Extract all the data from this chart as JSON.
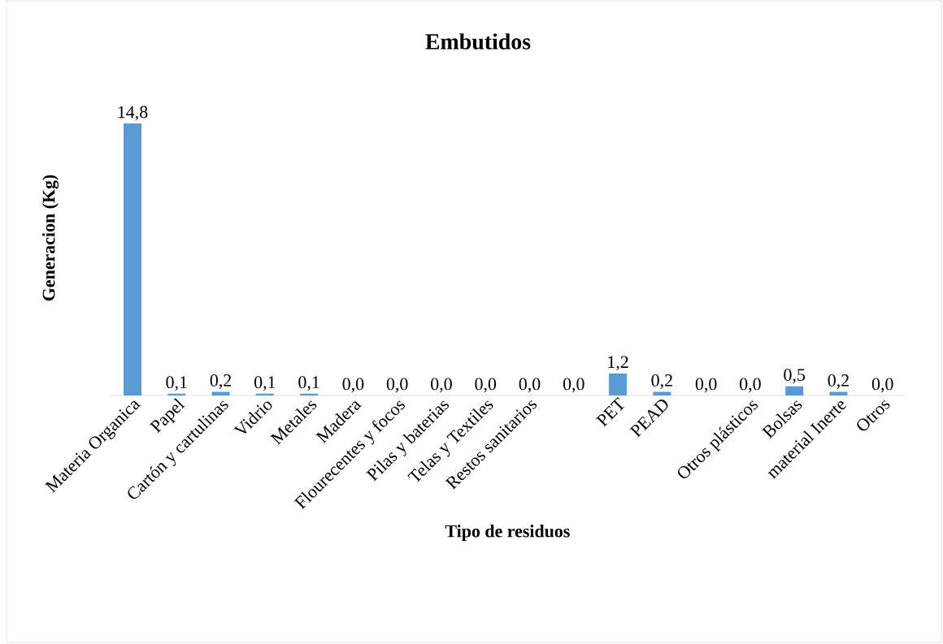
{
  "chart_data": {
    "type": "bar",
    "title": "Embutidos",
    "xlabel": "Tipo de residuos",
    "ylabel": "Generacion (Kg)",
    "categories": [
      "Materia Organica",
      "Papel",
      "Cartón y cartulinas",
      "Vidrio",
      "Metales",
      "Madera",
      "Flourecentes y focos",
      "Pilas y baterias",
      "Telas y Textiles",
      "Restos sanitarios",
      null,
      "PET",
      "PEAD",
      null,
      "Otros plásticos",
      "Bolsas",
      "material Inerte",
      "Otros"
    ],
    "values": [
      14.8,
      0.1,
      0.2,
      0.1,
      0.1,
      0.0,
      0.0,
      0.0,
      0.0,
      0.0,
      0.0,
      1.2,
      0.2,
      0.0,
      0.0,
      0.5,
      0.2,
      0.0
    ],
    "value_labels": [
      "14,8",
      "0,1",
      "0,2",
      "0,1",
      "0,1",
      "0,0",
      "0,0",
      "0,0",
      "0,0",
      "0,0",
      "0,0",
      "1,2",
      "0,2",
      "0,0",
      "0,0",
      "0,5",
      "0,2",
      "0,0"
    ],
    "color": "#5b9bd5",
    "tick_labels": "x"
  }
}
